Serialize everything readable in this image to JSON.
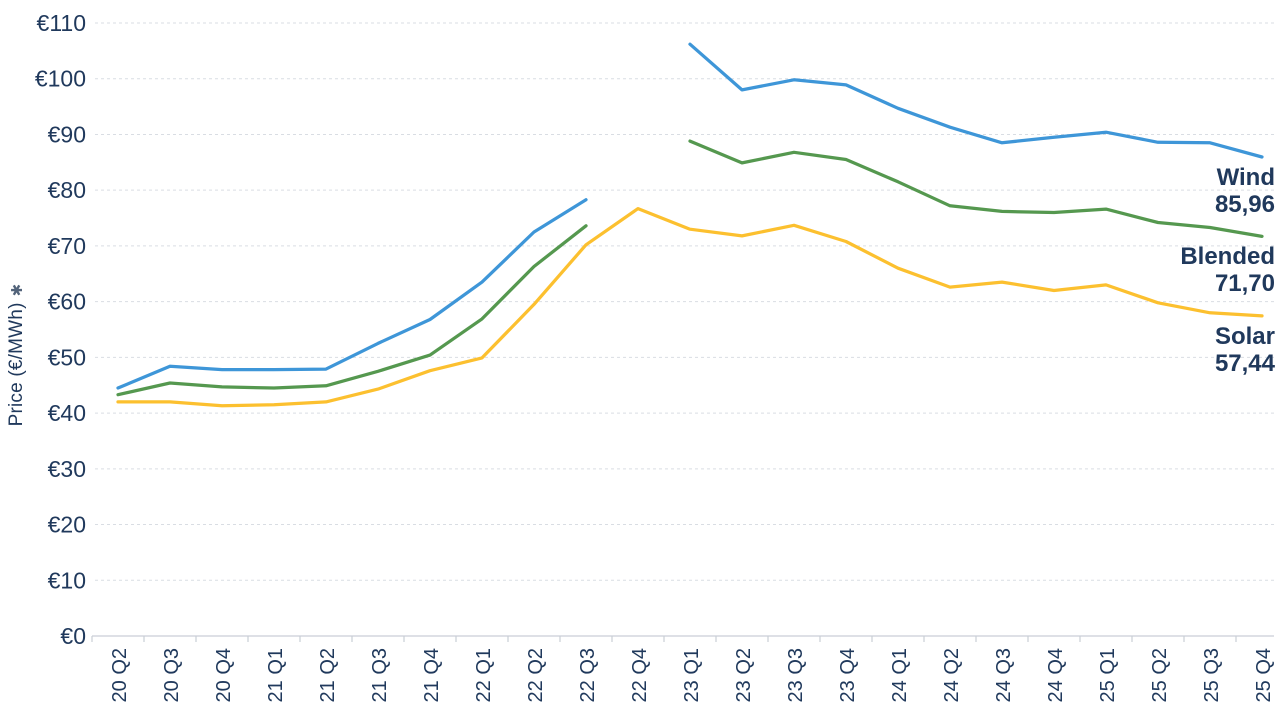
{
  "chart_data": {
    "type": "line",
    "title": "",
    "xlabel": "",
    "ylabel": "Price (€/MWh)",
    "ylabel_footnote_mark": "✱",
    "categories": [
      "20 Q2",
      "20 Q3",
      "20 Q4",
      "21 Q1",
      "21 Q2",
      "21 Q3",
      "21 Q4",
      "22 Q1",
      "22 Q2",
      "22 Q3",
      "22 Q4",
      "23 Q1",
      "23 Q2",
      "23 Q3",
      "23 Q4",
      "24 Q1",
      "24 Q2",
      "24 Q3",
      "24 Q4",
      "25 Q1",
      "25 Q2",
      "25 Q3",
      "25 Q4"
    ],
    "series": [
      {
        "name": "Wind",
        "color": "#3E96D8",
        "end_value": "85,96",
        "values": [
          44.5,
          48.4,
          47.8,
          47.8,
          47.9,
          52.5,
          56.8,
          63.5,
          72.5,
          78.3,
          null,
          106.2,
          98.0,
          99.8,
          98.9,
          94.7,
          91.3,
          88.5,
          89.5,
          90.4,
          88.6,
          88.5,
          85.96
        ]
      },
      {
        "name": "Blended",
        "color": "#55984F",
        "end_value": "71,70",
        "values": [
          43.3,
          45.4,
          44.7,
          44.5,
          44.9,
          47.5,
          50.4,
          56.9,
          66.3,
          73.6,
          null,
          88.8,
          84.9,
          86.8,
          85.5,
          81.5,
          77.2,
          76.2,
          76.0,
          76.6,
          74.2,
          73.3,
          71.7
        ]
      },
      {
        "name": "Solar",
        "color": "#FCC02F",
        "end_value": "57,44",
        "values": [
          42.0,
          42.0,
          41.3,
          41.5,
          42.0,
          44.3,
          47.6,
          49.9,
          59.5,
          70.2,
          76.7,
          73.0,
          71.8,
          73.7,
          70.8,
          66.0,
          62.6,
          63.5,
          62.0,
          63.0,
          59.8,
          58.0,
          57.44
        ]
      }
    ],
    "ylim": [
      0,
      110
    ],
    "ytick_step": 10,
    "ytick_labels": [
      "€0",
      "€10",
      "€20",
      "€30",
      "€40",
      "€50",
      "€60",
      "€70",
      "€80",
      "€90",
      "€100",
      "€110"
    ],
    "grid": "horizontal-dashed",
    "legend_position": "line-end-labels",
    "x_labels_rotated": true,
    "data_gap_category": "22 Q4"
  },
  "colors": {
    "text": "#20395C",
    "grid": "#D9DDE3",
    "axis": "#C9CED6",
    "footnote_mark": "#52637A"
  }
}
